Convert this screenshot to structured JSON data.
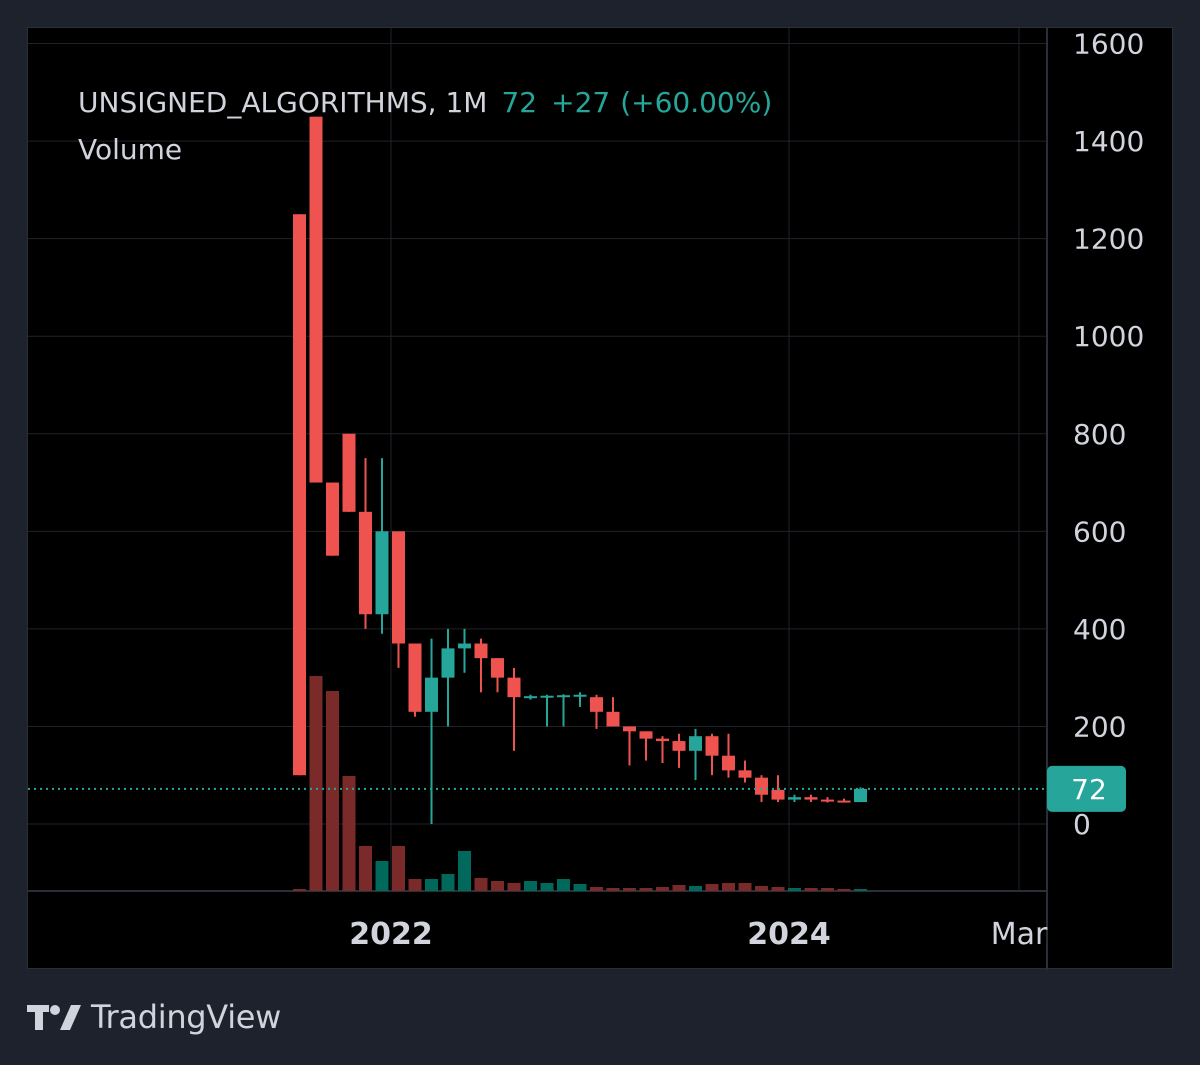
{
  "legend": {
    "symbol": "UNSIGNED_ALGORITHMS",
    "interval": "1M",
    "last": "72",
    "change": "+27",
    "change_pct": "(+60.00%)",
    "volume_label": "Volume"
  },
  "brand": {
    "name": "TradingView",
    "icon": "tradingview-logo-icon"
  },
  "colors": {
    "up": "#26a69a",
    "down": "#ef5350",
    "up_vol": "#00695c",
    "down_vol": "#7b2a2a",
    "background": "#000000",
    "grid": "#1f2229",
    "text": "#d1d4dc"
  },
  "chart_data": {
    "type": "candlestick",
    "symbol": "UNSIGNED_ALGORITHMS",
    "interval": "1M",
    "y_axis": {
      "ticks": [
        0,
        200,
        400,
        600,
        800,
        1000,
        1200,
        1400,
        1600
      ],
      "range": [
        0,
        1600
      ]
    },
    "x_axis": {
      "ticks": [
        "2022",
        "2024",
        "Mar"
      ]
    },
    "last_price": {
      "value": 72,
      "label": "72"
    },
    "candles": [
      {
        "date": "2021-08",
        "open": 1250,
        "high": 1250,
        "low": 100,
        "close": 100,
        "volume": 2
      },
      {
        "date": "2021-09",
        "open": 1450,
        "high": 1450,
        "low": 700,
        "close": 700,
        "volume": 215
      },
      {
        "date": "2021-10",
        "open": 700,
        "high": 700,
        "low": 550,
        "close": 550,
        "volume": 200
      },
      {
        "date": "2021-11",
        "open": 800,
        "high": 800,
        "low": 640,
        "close": 640,
        "volume": 115
      },
      {
        "date": "2021-12",
        "open": 640,
        "high": 750,
        "low": 400,
        "close": 430,
        "volume": 45
      },
      {
        "date": "2022-01",
        "open": 430,
        "high": 750,
        "low": 390,
        "close": 600,
        "volume": 30
      },
      {
        "date": "2022-02",
        "open": 600,
        "high": 600,
        "low": 320,
        "close": 370,
        "volume": 45
      },
      {
        "date": "2022-03",
        "open": 370,
        "high": 370,
        "low": 220,
        "close": 230,
        "volume": 12
      },
      {
        "date": "2022-04",
        "open": 230,
        "high": 380,
        "low": 0,
        "close": 300,
        "volume": 12
      },
      {
        "date": "2022-05",
        "open": 300,
        "high": 400,
        "low": 200,
        "close": 360,
        "volume": 17
      },
      {
        "date": "2022-06",
        "open": 360,
        "high": 400,
        "low": 310,
        "close": 370,
        "volume": 40
      },
      {
        "date": "2022-07",
        "open": 370,
        "high": 380,
        "low": 270,
        "close": 340,
        "volume": 13
      },
      {
        "date": "2022-08",
        "open": 340,
        "high": 340,
        "low": 270,
        "close": 300,
        "volume": 10
      },
      {
        "date": "2022-09",
        "open": 300,
        "high": 320,
        "low": 150,
        "close": 260,
        "volume": 8
      },
      {
        "date": "2022-10",
        "open": 260,
        "high": 265,
        "low": 255,
        "close": 262,
        "volume": 10
      },
      {
        "date": "2022-11",
        "open": 262,
        "high": 265,
        "low": 200,
        "close": 263,
        "volume": 8
      },
      {
        "date": "2022-12",
        "open": 263,
        "high": 266,
        "low": 200,
        "close": 264,
        "volume": 12
      },
      {
        "date": "2023-01",
        "open": 262,
        "high": 270,
        "low": 240,
        "close": 265,
        "volume": 7
      },
      {
        "date": "2023-02",
        "open": 260,
        "high": 265,
        "low": 195,
        "close": 230,
        "volume": 4
      },
      {
        "date": "2023-03",
        "open": 230,
        "high": 260,
        "low": 200,
        "close": 200,
        "volume": 3
      },
      {
        "date": "2023-04",
        "open": 200,
        "high": 200,
        "low": 120,
        "close": 190,
        "volume": 3
      },
      {
        "date": "2023-05",
        "open": 190,
        "high": 190,
        "low": 130,
        "close": 175,
        "volume": 3
      },
      {
        "date": "2023-06",
        "open": 175,
        "high": 180,
        "low": 125,
        "close": 170,
        "volume": 4
      },
      {
        "date": "2023-07",
        "open": 170,
        "high": 185,
        "low": 115,
        "close": 150,
        "volume": 6
      },
      {
        "date": "2023-08",
        "open": 150,
        "high": 195,
        "low": 90,
        "close": 180,
        "volume": 5
      },
      {
        "date": "2023-09",
        "open": 180,
        "high": 185,
        "low": 100,
        "close": 140,
        "volume": 7
      },
      {
        "date": "2023-10",
        "open": 140,
        "high": 185,
        "low": 95,
        "close": 110,
        "volume": 8
      },
      {
        "date": "2023-11",
        "open": 110,
        "high": 130,
        "low": 85,
        "close": 95,
        "volume": 8
      },
      {
        "date": "2023-12",
        "open": 95,
        "high": 100,
        "low": 45,
        "close": 60,
        "volume": 5
      },
      {
        "date": "2024-01",
        "open": 70,
        "high": 100,
        "low": 45,
        "close": 50,
        "volume": 4
      },
      {
        "date": "2024-02",
        "open": 50,
        "high": 60,
        "low": 45,
        "close": 55,
        "volume": 3
      },
      {
        "date": "2024-03",
        "open": 55,
        "high": 60,
        "low": 45,
        "close": 50,
        "volume": 3
      },
      {
        "date": "2024-04",
        "open": 50,
        "high": 55,
        "low": 44,
        "close": 47,
        "volume": 3
      },
      {
        "date": "2024-05",
        "open": 48,
        "high": 52,
        "low": 44,
        "close": 45,
        "volume": 2
      },
      {
        "date": "2024-06",
        "open": 45,
        "high": 75,
        "low": 45,
        "close": 72,
        "volume": 2
      }
    ]
  }
}
